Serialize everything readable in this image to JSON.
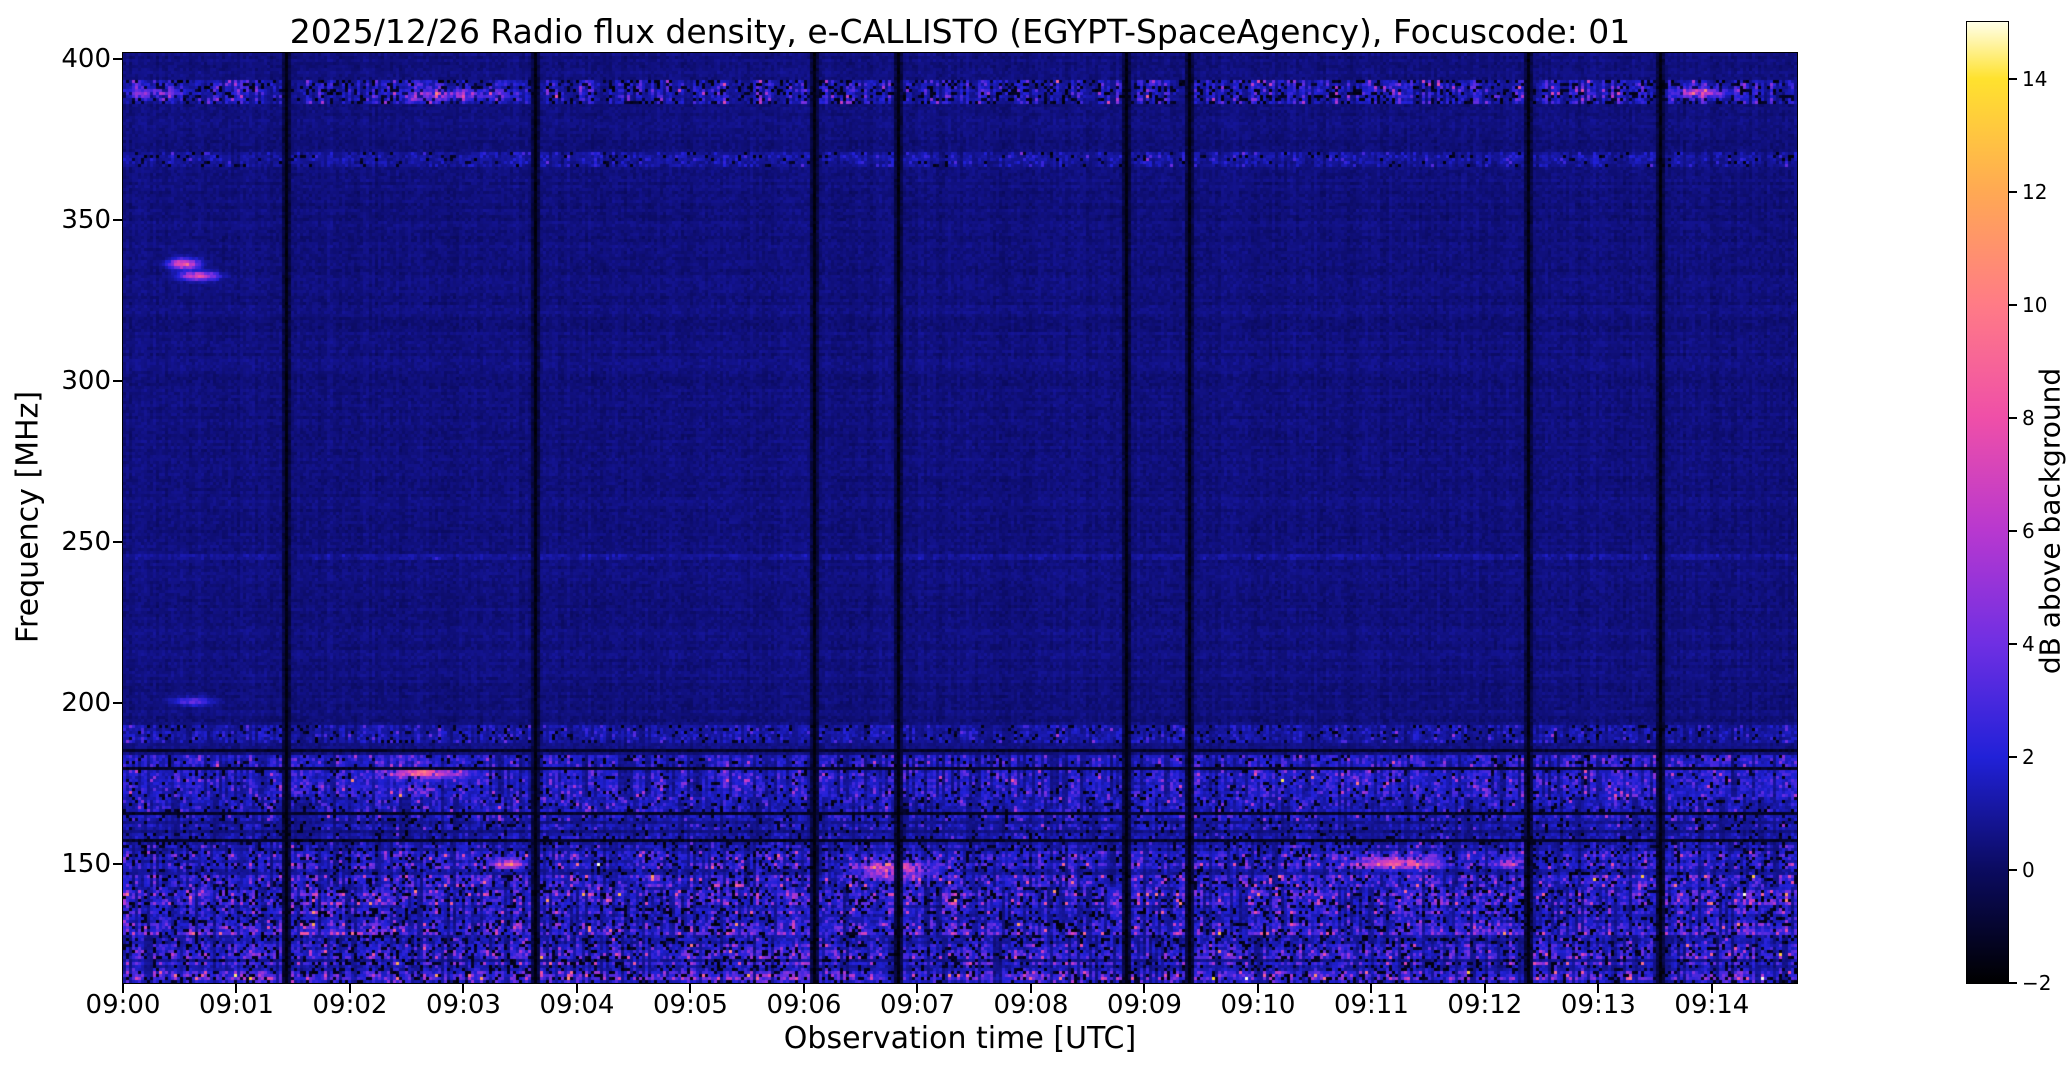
{
  "chart_data": {
    "type": "heatmap",
    "subtype": "radio-spectrogram",
    "title": "2025/12/26  Radio flux density, e-CALLISTO (EGYPT-SpaceAgency), Focuscode: 01",
    "xlabel": "Observation time [UTC]",
    "ylabel": "Frequency [MHz]",
    "x_ticks": [
      {
        "minute": 0,
        "label": "09:00"
      },
      {
        "minute": 1,
        "label": "09:01"
      },
      {
        "minute": 2,
        "label": "09:02"
      },
      {
        "minute": 3,
        "label": "09:03"
      },
      {
        "minute": 4,
        "label": "09:04"
      },
      {
        "minute": 5,
        "label": "09:05"
      },
      {
        "minute": 6,
        "label": "09:06"
      },
      {
        "minute": 7,
        "label": "09:07"
      },
      {
        "minute": 8,
        "label": "09:08"
      },
      {
        "minute": 9,
        "label": "09:09"
      },
      {
        "minute": 10,
        "label": "09:10"
      },
      {
        "minute": 11,
        "label": "09:11"
      },
      {
        "minute": 12,
        "label": "09:12"
      },
      {
        "minute": 13,
        "label": "09:13"
      },
      {
        "minute": 14,
        "label": "09:14"
      }
    ],
    "x_range_minutes": [
      0,
      14.75
    ],
    "y_ticks": [
      {
        "value": 400,
        "label": "400"
      },
      {
        "value": 350,
        "label": "350"
      },
      {
        "value": 300,
        "label": "300"
      },
      {
        "value": 250,
        "label": "250"
      },
      {
        "value": 200,
        "label": "200"
      },
      {
        "value": 150,
        "label": "150"
      }
    ],
    "y_range_mhz": [
      113,
      402
    ],
    "background_level_db": 0.5,
    "colorbar": {
      "label": "dB above background",
      "value_range": [
        -2,
        15
      ],
      "ticks": [
        {
          "value": 14,
          "label": "14"
        },
        {
          "value": 12,
          "label": "12"
        },
        {
          "value": 10,
          "label": "10"
        },
        {
          "value": 8,
          "label": "8"
        },
        {
          "value": 6,
          "label": "6"
        },
        {
          "value": 4,
          "label": "4"
        },
        {
          "value": 2,
          "label": "2"
        },
        {
          "value": 0,
          "label": "0"
        },
        {
          "value": -2,
          "label": "−2"
        }
      ],
      "colormap_stops": [
        {
          "v": -2,
          "c": "#000000"
        },
        {
          "v": 0,
          "c": "#0b0b60"
        },
        {
          "v": 2,
          "c": "#2121d8"
        },
        {
          "v": 4,
          "c": "#6f2fe3"
        },
        {
          "v": 6,
          "c": "#b838cf"
        },
        {
          "v": 8,
          "c": "#ef4fa8"
        },
        {
          "v": 10,
          "c": "#ff7b86"
        },
        {
          "v": 12,
          "c": "#ffa953"
        },
        {
          "v": 14,
          "c": "#ffe22e"
        },
        {
          "v": 15,
          "c": "#ffffe8"
        }
      ]
    },
    "rfi_bands": [
      {
        "f_low": 386,
        "f_high": 393.5,
        "base_db": 0.7,
        "noise_db": 2.4,
        "gate": 0.5,
        "dark_frac": 0.22,
        "desc": "strong intermittent RFI band near 390 MHz"
      },
      {
        "f_low": 367,
        "f_high": 371,
        "base_db": 0.25,
        "noise_db": 1.1,
        "gate": 0.85,
        "dark_frac": 0.06,
        "desc": "fine speckle RFI band near 369 MHz"
      },
      {
        "f_low": 244,
        "f_high": 246.5,
        "base_db": 0.35,
        "noise_db": 0.3,
        "gate": 0.9,
        "dark_frac": 0.0,
        "desc": "faint enhancement line near 245 MHz"
      },
      {
        "f_low": 188,
        "f_high": 193,
        "base_db": 0.35,
        "noise_db": 1.3,
        "gate": 0.8,
        "dark_frac": 0.1,
        "desc": "speckle RFI band near 190 MHz"
      },
      {
        "f_low": 171,
        "f_high": 183.5,
        "base_db": 0.9,
        "noise_db": 1.9,
        "gate": 0.8,
        "dark_frac": 0.08,
        "desc": "blue RFI band 171-183 MHz"
      },
      {
        "f_low": 158,
        "f_high": 171,
        "base_db": 0.5,
        "noise_db": 1.5,
        "gate": 0.85,
        "dark_frac": 0.1,
        "desc": "speckle RFI band 158-171 MHz"
      },
      {
        "f_low": 143,
        "f_high": 158,
        "base_db": 0.9,
        "noise_db": 2.6,
        "gate": 0.8,
        "dark_frac": 0.14,
        "desc": "strong noisy RFI region 143-158 MHz"
      },
      {
        "f_low": 128,
        "f_high": 143,
        "base_db": 1.1,
        "noise_db": 3.0,
        "gate": 0.8,
        "dark_frac": 0.16,
        "desc": "strong noisy RFI region 128-143 MHz"
      },
      {
        "f_low": 113,
        "f_high": 128,
        "base_db": 1.2,
        "noise_db": 3.2,
        "gate": 0.8,
        "dark_frac": 0.18,
        "desc": "strongest RFI region at bottom edge"
      }
    ],
    "bursts": [
      {
        "t_start": 0.42,
        "t_end": 0.66,
        "f_low": 335.0,
        "f_high": 338.0,
        "peak_db": 9.0,
        "desc": "narrow bright streak ~336 MHz at 09:00:30"
      },
      {
        "t_start": 0.52,
        "t_end": 0.82,
        "f_low": 331.5,
        "f_high": 334.0,
        "peak_db": 8.0,
        "desc": "narrow bright streak ~333 MHz at 09:00:35"
      },
      {
        "t_start": 0.45,
        "t_end": 0.78,
        "f_low": 199.3,
        "f_high": 201.8,
        "peak_db": 3.5,
        "desc": "faint blue streak at 200 MHz"
      },
      {
        "t_start": 2.38,
        "t_end": 2.95,
        "f_low": 176.8,
        "f_high": 179.6,
        "peak_db": 7.5,
        "desc": "pink RFI segment near 178 MHz at 09:02:40"
      },
      {
        "t_start": 0.05,
        "t_end": 0.55,
        "f_low": 388.0,
        "f_high": 391.0,
        "peak_db": 3.5,
        "desc": "blue segment in 389 MHz band"
      },
      {
        "t_start": 2.55,
        "t_end": 3.35,
        "f_low": 387.5,
        "f_high": 390.5,
        "peak_db": 4.5,
        "desc": "bright segment in 389 MHz band"
      },
      {
        "t_start": 13.7,
        "t_end": 14.1,
        "f_low": 388.0,
        "f_high": 391.0,
        "peak_db": 6.0,
        "desc": "pink segment in 389 MHz band"
      },
      {
        "t_start": 3.25,
        "t_end": 3.5,
        "f_low": 148.5,
        "f_high": 151.5,
        "peak_db": 7.0,
        "desc": "bright speckle cluster near 150 MHz"
      },
      {
        "t_start": 6.5,
        "t_end": 7.1,
        "f_low": 146.0,
        "f_high": 150.5,
        "peak_db": 7.0,
        "desc": "bright speckle cluster near 148 MHz"
      },
      {
        "t_start": 10.9,
        "t_end": 11.6,
        "f_low": 148.5,
        "f_high": 152.0,
        "peak_db": 6.5,
        "desc": "bright speckle cluster near 150 MHz"
      },
      {
        "t_start": 12.1,
        "t_end": 12.35,
        "f_low": 149.0,
        "f_high": 151.5,
        "peak_db": 5.5,
        "desc": "bright speckle cluster near 150 MHz"
      }
    ],
    "dark_time_lines_min": [
      1.42,
      3.61,
      6.09,
      6.82,
      8.83,
      9.38,
      12.38,
      13.53
    ],
    "dark_freq_lines_mhz": [
      185.5,
      180.3,
      166.5,
      157.8
    ]
  }
}
